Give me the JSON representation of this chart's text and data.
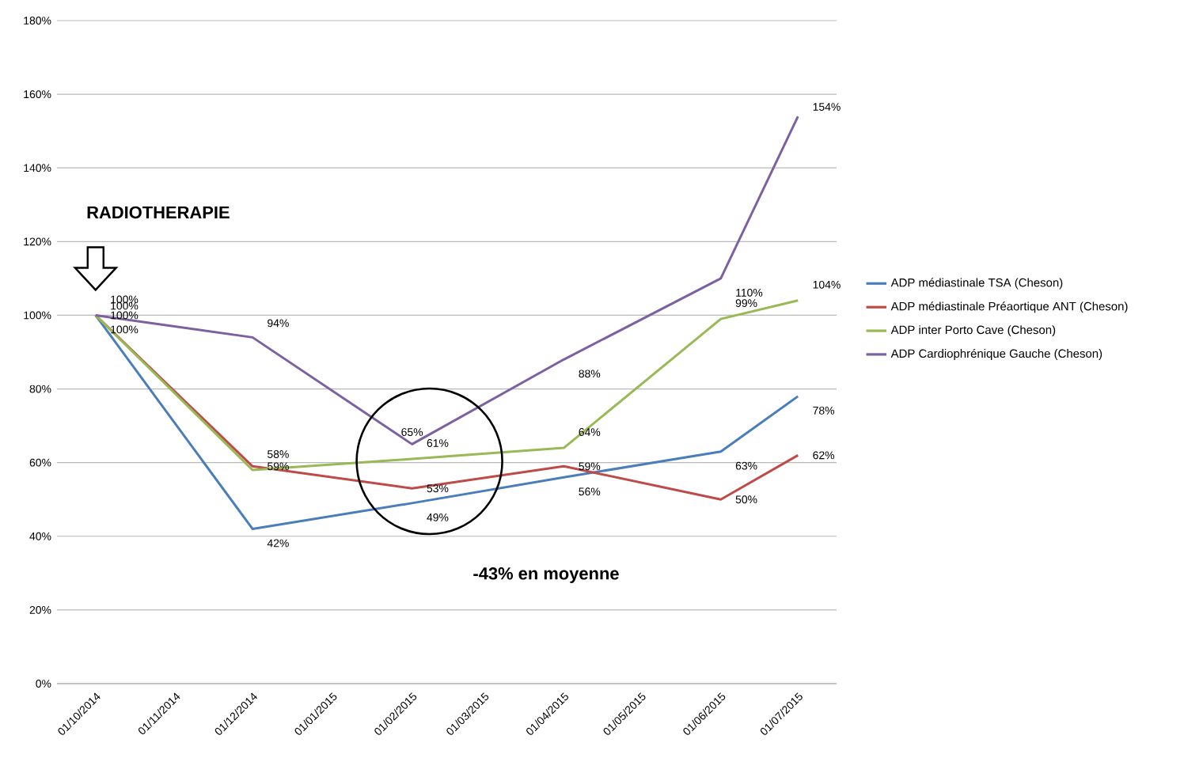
{
  "chart_data": {
    "type": "line",
    "x": [
      "2014-10-01",
      "2014-12-01",
      "2015-02-01",
      "2015-04-01",
      "2015-06-01",
      "2015-07-01"
    ],
    "series": [
      {
        "name": "ADP médiastinale TSA (Cheson)",
        "color": "#4a7ebb",
        "values": [
          100,
          42,
          49,
          56,
          63,
          78
        ],
        "value_labels": [
          "100%",
          "42%",
          "49%",
          "56%",
          "63%",
          "78%"
        ]
      },
      {
        "name": "ADP médiastinale Préaortique ANT (Cheson)",
        "color": "#be4b48",
        "values": [
          100,
          59,
          53,
          59,
          50,
          62
        ],
        "value_labels": [
          "100%",
          "59%",
          "53%",
          "59%",
          "50%",
          "62%"
        ]
      },
      {
        "name": "ADP inter Porto Cave (Cheson)",
        "color": "#98b954",
        "values": [
          100,
          58,
          61,
          64,
          99,
          104
        ],
        "value_labels": [
          "100%",
          "58%",
          "61%",
          "64%",
          "99%",
          "104%"
        ]
      },
      {
        "name": "ADP Cardiophrénique Gauche (Cheson)",
        "color": "#7d60a0",
        "values": [
          100,
          94,
          65,
          88,
          110,
          154
        ],
        "value_labels": [
          "100%",
          "94%",
          "65%",
          "88%",
          "110%",
          "154%"
        ]
      }
    ],
    "xlim": [
      "2014-09-16",
      "2015-07-16"
    ],
    "xticks": [
      {
        "value": "2014-10-01",
        "label": "01/10/2014"
      },
      {
        "value": "2014-11-01",
        "label": "01/11/2014"
      },
      {
        "value": "2014-12-01",
        "label": "01/12/2014"
      },
      {
        "value": "2015-01-01",
        "label": "01/01/2015"
      },
      {
        "value": "2015-02-01",
        "label": "01/02/2015"
      },
      {
        "value": "2015-03-01",
        "label": "01/03/2015"
      },
      {
        "value": "2015-04-01",
        "label": "01/04/2015"
      },
      {
        "value": "2015-05-01",
        "label": "01/05/2015"
      },
      {
        "value": "2015-06-01",
        "label": "01/06/2015"
      },
      {
        "value": "2015-07-01",
        "label": "01/07/2015"
      }
    ],
    "ylim": [
      0,
      180
    ],
    "yticks": [
      {
        "value": 0,
        "label": "0%"
      },
      {
        "value": 20,
        "label": "20%"
      },
      {
        "value": 40,
        "label": "40%"
      },
      {
        "value": 60,
        "label": "60%"
      },
      {
        "value": 80,
        "label": "80%"
      },
      {
        "value": 100,
        "label": "100%"
      },
      {
        "value": 120,
        "label": "120%"
      },
      {
        "value": 140,
        "label": "140%"
      },
      {
        "value": 160,
        "label": "160%"
      },
      {
        "value": 180,
        "label": "180%"
      }
    ],
    "annotations": [
      "RADIOTHERAPIE",
      "-43% en moyenne"
    ],
    "grid": "y",
    "legend": "right",
    "marker": "none",
    "line_style": "solid"
  }
}
